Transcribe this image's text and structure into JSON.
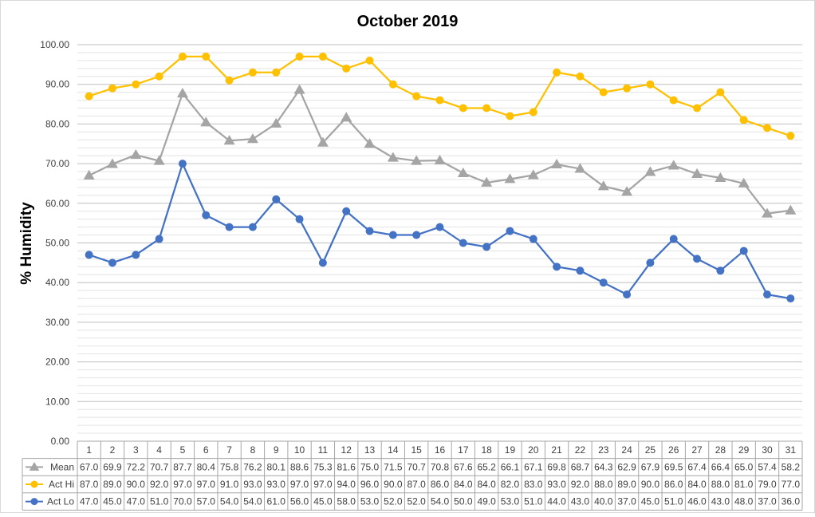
{
  "chart_data": {
    "type": "line",
    "title": "October 2019",
    "xlabel": "",
    "ylabel": "% Humidity",
    "ylim": [
      0,
      100
    ],
    "y_ticks": [
      "0.00",
      "10.00",
      "20.00",
      "30.00",
      "40.00",
      "50.00",
      "60.00",
      "70.00",
      "80.00",
      "90.00",
      "100.00"
    ],
    "grid": true,
    "legend": "data-table-left",
    "categories": [
      "1",
      "2",
      "3",
      "4",
      "5",
      "6",
      "7",
      "8",
      "9",
      "10",
      "11",
      "12",
      "13",
      "14",
      "15",
      "16",
      "17",
      "18",
      "19",
      "20",
      "21",
      "22",
      "23",
      "24",
      "25",
      "26",
      "27",
      "28",
      "29",
      "30",
      "31"
    ],
    "series": [
      {
        "name": "Mean",
        "color": "#a5a5a5",
        "marker": "triangle",
        "values": [
          67.0,
          69.9,
          72.2,
          70.7,
          87.7,
          80.4,
          75.8,
          76.2,
          80.1,
          88.6,
          75.3,
          81.6,
          75.0,
          71.5,
          70.7,
          70.8,
          67.6,
          65.2,
          66.1,
          67.1,
          69.8,
          68.7,
          64.3,
          62.9,
          67.9,
          69.5,
          67.4,
          66.4,
          65.0,
          57.4,
          58.2
        ],
        "labels": [
          "67.0",
          "69.9",
          "72.2",
          "70.7",
          "87.7",
          "80.4",
          "75.8",
          "76.2",
          "80.1",
          "88.6",
          "75.3",
          "81.6",
          "75.0",
          "71.5",
          "70.7",
          "70.8",
          "67.6",
          "65.2",
          "66.1",
          "67.1",
          "69.8",
          "68.7",
          "64.3",
          "62.9",
          "67.9",
          "69.5",
          "67.4",
          "66.4",
          "65.0",
          "57.4",
          "58.2"
        ]
      },
      {
        "name": "Act Hi",
        "color": "#ffc000",
        "marker": "circle",
        "values": [
          87,
          89,
          90,
          92,
          97,
          97,
          91,
          93,
          93,
          97,
          97,
          94,
          96,
          90,
          87,
          86,
          84,
          84,
          82,
          83,
          93,
          92,
          88,
          89,
          90,
          86,
          84,
          88,
          81,
          79,
          77
        ],
        "labels": [
          "87.0",
          "89.0",
          "90.0",
          "92.0",
          "97.0",
          "97.0",
          "91.0",
          "93.0",
          "93.0",
          "97.0",
          "97.0",
          "94.0",
          "96.0",
          "90.0",
          "87.0",
          "86.0",
          "84.0",
          "84.0",
          "82.0",
          "83.0",
          "93.0",
          "92.0",
          "88.0",
          "89.0",
          "90.0",
          "86.0",
          "84.0",
          "88.0",
          "81.0",
          "79.0",
          "77.0"
        ]
      },
      {
        "name": "Act Lo",
        "color": "#4472c4",
        "marker": "circle",
        "values": [
          47,
          45,
          47,
          51,
          70,
          57,
          54,
          54,
          61,
          56,
          45,
          58,
          53,
          52,
          52,
          54,
          50,
          49,
          53,
          51,
          44,
          43,
          40,
          37,
          45,
          51,
          46,
          43,
          48,
          37,
          36
        ],
        "labels": [
          "47.0",
          "45.0",
          "47.0",
          "51.0",
          "70.0",
          "57.0",
          "54.0",
          "54.0",
          "61.0",
          "56.0",
          "45.0",
          "58.0",
          "53.0",
          "52.0",
          "52.0",
          "54.0",
          "50.0",
          "49.0",
          "53.0",
          "51.0",
          "44.0",
          "43.0",
          "40.0",
          "37.0",
          "45.0",
          "51.0",
          "46.0",
          "43.0",
          "48.0",
          "37.0",
          "36.0"
        ]
      }
    ]
  }
}
